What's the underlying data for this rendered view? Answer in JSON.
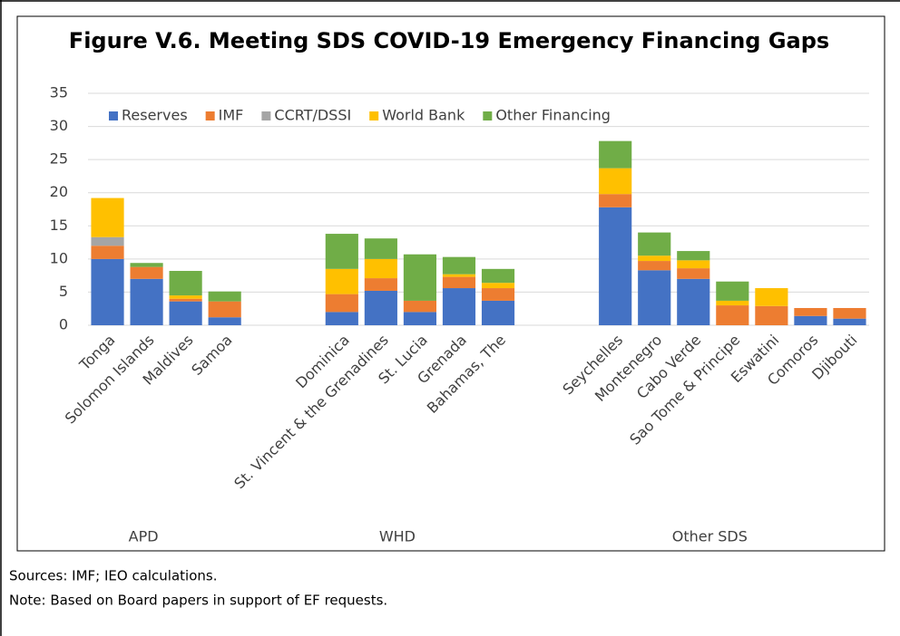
{
  "chart_data": {
    "type": "stacked-bar",
    "title": "Figure V.6. Meeting SDS COVID-19 Emergency Financing Gaps",
    "categories": [
      "Tonga",
      "Solomon Islands",
      "Maldives",
      "Samoa",
      null,
      null,
      "Dominica",
      "St. Vincent & the Grenadines",
      "St. Lucia",
      "Grenada",
      "Bahamas, The",
      null,
      null,
      "Seychelles",
      "Montenegro",
      "Cabo Verde",
      "Sao Tome & Principe",
      "Eswatini",
      "Comoros",
      "Djibouti"
    ],
    "group_labels": [
      "APD",
      "WHD",
      "Other SDS"
    ],
    "series": [
      {
        "name": "Reserves",
        "color": "#4472c4",
        "values": [
          10.0,
          7.0,
          3.6,
          1.2,
          null,
          null,
          2.0,
          5.2,
          2.0,
          5.6,
          3.7,
          null,
          null,
          17.8,
          8.3,
          7.0,
          0,
          0,
          1.4,
          1.0
        ]
      },
      {
        "name": "IMF",
        "color": "#ed7d31",
        "values": [
          2.0,
          1.8,
          0.4,
          2.4,
          null,
          null,
          2.7,
          1.9,
          1.7,
          1.7,
          1.9,
          null,
          null,
          2.0,
          1.4,
          1.6,
          3.0,
          2.9,
          1.2,
          1.6
        ]
      },
      {
        "name": "CCRT/DSSI",
        "color": "#a5a5a5",
        "values": [
          1.3,
          0,
          0,
          0,
          null,
          null,
          0,
          0,
          0,
          0,
          0,
          null,
          null,
          0,
          0,
          0,
          0,
          0,
          0,
          0
        ]
      },
      {
        "name": "World Bank",
        "color": "#ffc000",
        "values": [
          5.9,
          0,
          0.5,
          0,
          null,
          null,
          3.8,
          2.9,
          0,
          0.4,
          0.8,
          null,
          null,
          3.9,
          0.8,
          1.2,
          0.7,
          2.7,
          0,
          0
        ]
      },
      {
        "name": "Other Financing",
        "color": "#70ad47",
        "values": [
          0,
          0.6,
          3.7,
          1.5,
          null,
          null,
          5.3,
          3.1,
          7.0,
          2.6,
          2.1,
          null,
          null,
          4.1,
          3.5,
          1.4,
          2.9,
          0,
          0,
          0
        ]
      }
    ],
    "ylim": [
      0,
      35
    ],
    "yticks": [
      0,
      5,
      10,
      15,
      20,
      25,
      30,
      35
    ],
    "grid": true,
    "legend": "top-left",
    "sources": "Sources: IMF; IEO calculations.",
    "note": "Note: Based on Board papers in support of EF requests."
  }
}
